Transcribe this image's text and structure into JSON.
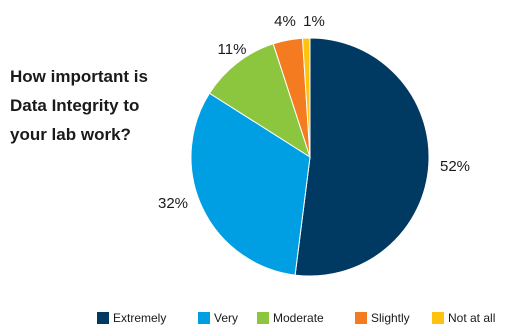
{
  "chart_data": {
    "type": "pie",
    "title": "How important is Data Integrity to your lab work?",
    "title_lines": [
      "How important is",
      "Data Integrity to",
      "your lab work?"
    ],
    "categories": [
      "Extremely",
      "Very",
      "Moderate",
      "Slightly",
      "Not at all"
    ],
    "values": [
      52,
      32,
      11,
      4,
      1
    ],
    "data_labels": [
      "52%",
      "32%",
      "11%",
      "4%",
      "1%"
    ],
    "colors": [
      "#003a63",
      "#009fe3",
      "#8cc63f",
      "#f47b20",
      "#ffc20e"
    ],
    "legend_position": "bottom-right",
    "grid": false
  }
}
